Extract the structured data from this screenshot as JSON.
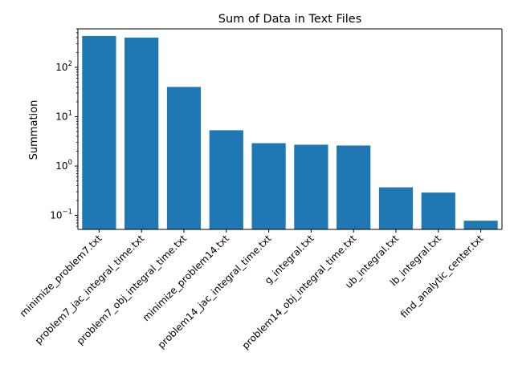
{
  "chart_data": {
    "type": "bar",
    "title": "Sum of Data in Text Files",
    "xlabel": "",
    "ylabel": "Summation",
    "yscale": "log",
    "ylim": [
      0.052,
      600
    ],
    "grid": false,
    "bar_color": "#1f77b4",
    "categories": [
      "minimize_problem7.txt",
      "problem7_jac_integral_time.txt",
      "problem7_obj_integral_time.txt",
      "minimize_problem14.txt",
      "problem14_jac_integral_time.txt",
      "g_integral.txt",
      "problem14_obj_integral_time.txt",
      "ub_integral.txt",
      "lb_integral.txt",
      "find_analytic_center.txt"
    ],
    "values": [
      430,
      400,
      40,
      5.3,
      2.9,
      2.7,
      2.6,
      0.37,
      0.29,
      0.078
    ],
    "yticks": [
      {
        "base": "10",
        "exp": "−1",
        "value": 0.1
      },
      {
        "base": "10",
        "exp": "0",
        "value": 1
      },
      {
        "base": "10",
        "exp": "1",
        "value": 10
      },
      {
        "base": "10",
        "exp": "2",
        "value": 100
      }
    ]
  }
}
